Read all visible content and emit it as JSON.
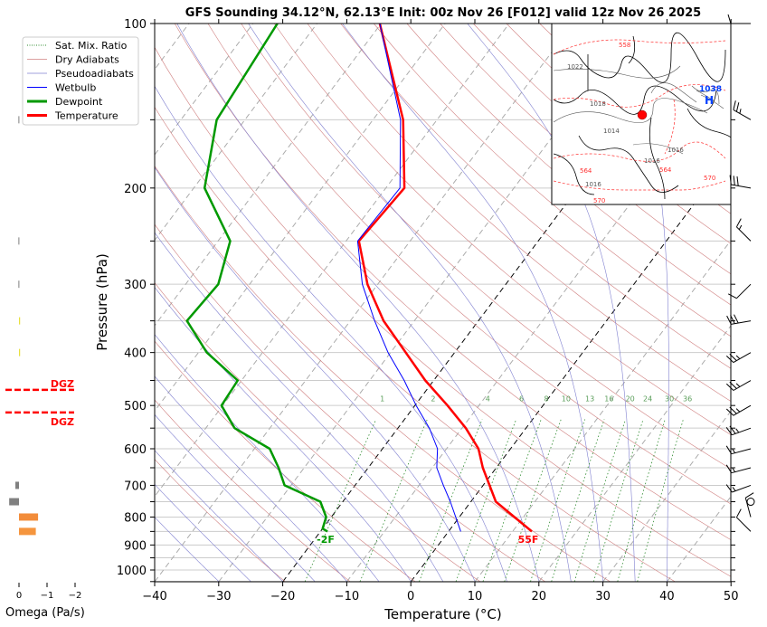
{
  "chart_data": {
    "type": "line",
    "subtype": "skew-t log-p sounding",
    "title": "GFS Sounding 34.12°N, 62.13°E Init: 00z Nov 26 [F012] valid 12z Nov 26 2025",
    "xlabel": "Temperature (°C)",
    "ylabel": "Pressure (hPa)",
    "xlim": [
      -40,
      50
    ],
    "ylim": [
      1050,
      100
    ],
    "grid": true,
    "xticks": [
      -40,
      -30,
      -20,
      -10,
      0,
      10,
      20,
      30,
      40,
      50
    ],
    "xtick_labels": [
      "−40",
      "−30",
      "−20",
      "−10",
      "0",
      "10",
      "20",
      "30",
      "40",
      "50"
    ],
    "yticks": [
      100,
      200,
      300,
      400,
      500,
      600,
      700,
      800,
      900,
      1000
    ],
    "ytick_labels": [
      "100",
      "200",
      "300",
      "400",
      "500",
      "600",
      "700",
      "800",
      "900",
      "1000"
    ],
    "legend_position": "top-left",
    "legend": [
      {
        "label": "Sat. Mix. Ratio",
        "color": "#2e8b2e",
        "style": "dotted"
      },
      {
        "label": "Dry Adiabats",
        "color": "#d08080",
        "style": "solid"
      },
      {
        "label": "Pseudoadiabats",
        "color": "#8080d0",
        "style": "solid"
      },
      {
        "label": "Wetbulb",
        "color": "#0000ff",
        "style": "solid"
      },
      {
        "label": "Dewpoint",
        "color": "#009900",
        "style": "thick"
      },
      {
        "label": "Temperature",
        "color": "#ff0000",
        "style": "thick"
      }
    ],
    "series": [
      {
        "name": "Temperature",
        "color": "#ff0000",
        "p": [
          100,
          150,
          200,
          250,
          300,
          350,
          450,
          500,
          550,
          600,
          650,
          750,
          850
        ],
        "t": [
          -70.2,
          -55.3,
          -47.1,
          -48.0,
          -41.6,
          -34.8,
          -21.3,
          -14.9,
          -9.4,
          -5.0,
          -2.1,
          3.9,
          13.0
        ]
      },
      {
        "name": "Dewpoint",
        "color": "#009900",
        "p": [
          100,
          150,
          200,
          250,
          300,
          350,
          400,
          450,
          500,
          550,
          600,
          650,
          700,
          750,
          800,
          840,
          850
        ],
        "t": [
          -86.2,
          -84.4,
          -78.3,
          -68.1,
          -64.9,
          -65.5,
          -58.7,
          -50.6,
          -50.2,
          -45.5,
          -37.6,
          -34.0,
          -31.0,
          -23.5,
          -20.8,
          -20.0,
          -18.9
        ]
      },
      {
        "name": "Wetbulb",
        "color": "#0000ff",
        "p": [
          100,
          150,
          200,
          250,
          300,
          350,
          400,
          450,
          500,
          550,
          600,
          650,
          700,
          750,
          850
        ],
        "t": [
          -70.2,
          -55.7,
          -47.8,
          -48.2,
          -42.4,
          -36.2,
          -30.4,
          -24.6,
          -19.8,
          -15.1,
          -11.4,
          -9.3,
          -6.2,
          -3.2,
          1.9
        ]
      }
    ],
    "surface_labels": {
      "temperature": "55F",
      "dewpoint": "-2F"
    },
    "mixing_ratio_labels": [
      "1",
      "2",
      "4",
      "6",
      "8",
      "10",
      "13",
      "16",
      "20",
      "24",
      "30",
      "36"
    ],
    "mixing_ratio_values": [
      1,
      2,
      4,
      6,
      8,
      10,
      13,
      16,
      20,
      24,
      30,
      36
    ],
    "highlighted_isotherms": [
      0,
      -20
    ],
    "omega": {
      "xlabel": "Omega (Pa/s)",
      "xticks": [
        0,
        -1,
        -2
      ],
      "xtick_labels": [
        "0",
        "−1",
        "−2"
      ],
      "bars": [
        {
          "p": 150,
          "w": 0.02,
          "color": "#808080"
        },
        {
          "p": 250,
          "w": 0.02,
          "color": "#808080"
        },
        {
          "p": 300,
          "w": 0.02,
          "color": "#808080"
        },
        {
          "p": 350,
          "w": -0.04,
          "color": "#e8e040"
        },
        {
          "p": 400,
          "w": -0.04,
          "color": "#e8e040"
        },
        {
          "p": 700,
          "w": 0.13,
          "color": "#808080"
        },
        {
          "p": 750,
          "w": 0.35,
          "color": "#808080"
        },
        {
          "p": 800,
          "w": -0.68,
          "color": "#f28c3a"
        },
        {
          "p": 850,
          "w": -0.6,
          "color": "#f5953e"
        }
      ],
      "dgz": {
        "top_p": 468,
        "bottom_p": 515,
        "label": "DGZ",
        "color": "#ff0000"
      }
    },
    "winds": [
      {
        "p": 100,
        "dir": 270,
        "kt": 10
      },
      {
        "p": 150,
        "dir": 300,
        "kt": 25
      },
      {
        "p": 200,
        "dir": 280,
        "kt": 30
      },
      {
        "p": 250,
        "dir": 315,
        "kt": 15
      },
      {
        "p": 300,
        "dir": 225,
        "kt": 10
      },
      {
        "p": 350,
        "dir": 260,
        "kt": 30
      },
      {
        "p": 400,
        "dir": 240,
        "kt": 25
      },
      {
        "p": 450,
        "dir": 240,
        "kt": 25
      },
      {
        "p": 500,
        "dir": 240,
        "kt": 25
      },
      {
        "p": 550,
        "dir": 250,
        "kt": 25
      },
      {
        "p": 600,
        "dir": 255,
        "kt": 15
      },
      {
        "p": 650,
        "dir": 255,
        "kt": 15
      },
      {
        "p": 700,
        "dir": 250,
        "kt": 15
      },
      {
        "p": 750,
        "dir": 0,
        "kt": 0
      },
      {
        "p": 800,
        "dir": 345,
        "kt": 10
      },
      {
        "p": 850,
        "dir": 315,
        "kt": 10
      }
    ],
    "inset_map": {
      "labels": [
        "1022",
        "1018",
        "1014",
        "1016",
        "1016",
        "1016",
        "558",
        "564",
        "564",
        "570",
        "570",
        "1038",
        "H"
      ],
      "station_marker_color": "#ff0000"
    }
  }
}
